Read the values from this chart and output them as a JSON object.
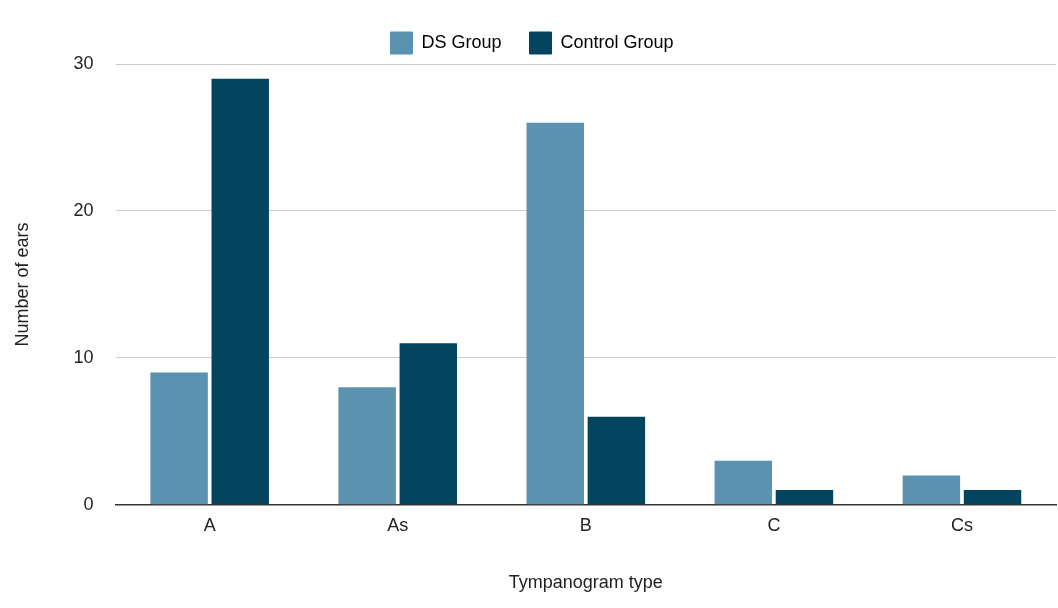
{
  "chart_data": {
    "type": "bar",
    "xlabel": "Tympanogram type",
    "ylabel": "Number of ears",
    "categories": [
      "A",
      "As",
      "B",
      "C",
      "Cs"
    ],
    "series": [
      {
        "name": "DS Group",
        "color": "#5a92af",
        "values": [
          9,
          8,
          26,
          3,
          2
        ]
      },
      {
        "name": "Control Group",
        "color": "#03445f",
        "values": [
          29,
          11,
          6,
          1,
          1
        ]
      }
    ],
    "ylim": [
      0,
      30
    ],
    "yticks": [
      0,
      10,
      20,
      30
    ],
    "grid": "y",
    "legend": "top"
  }
}
